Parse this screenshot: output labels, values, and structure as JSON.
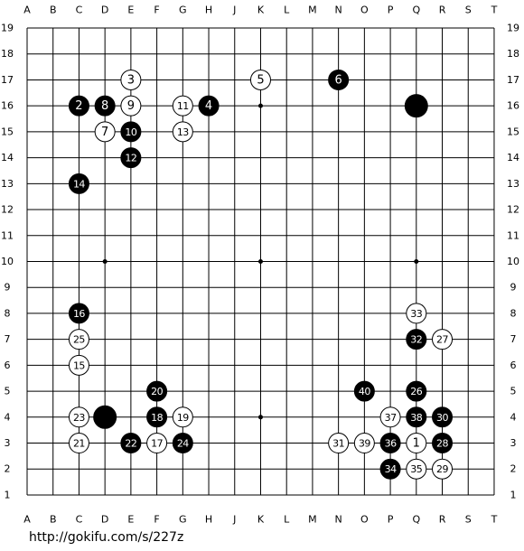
{
  "board": {
    "columns": [
      "A",
      "B",
      "C",
      "D",
      "E",
      "F",
      "G",
      "H",
      "J",
      "K",
      "L",
      "M",
      "N",
      "O",
      "P",
      "Q",
      "R",
      "S",
      "T"
    ],
    "rows": [
      19,
      18,
      17,
      16,
      15,
      14,
      13,
      12,
      11,
      10,
      9,
      8,
      7,
      6,
      5,
      4,
      3,
      2,
      1
    ],
    "stones": [
      {
        "col": "Q",
        "row": 3,
        "color": "white",
        "label": 1
      },
      {
        "col": "C",
        "row": 16,
        "color": "black",
        "label": 2
      },
      {
        "col": "E",
        "row": 17,
        "color": "white",
        "label": 3
      },
      {
        "col": "H",
        "row": 16,
        "color": "black",
        "label": 4
      },
      {
        "col": "K",
        "row": 17,
        "color": "white",
        "label": 5
      },
      {
        "col": "N",
        "row": 17,
        "color": "black",
        "label": 6
      },
      {
        "col": "D",
        "row": 15,
        "color": "white",
        "label": 7
      },
      {
        "col": "D",
        "row": 16,
        "color": "black",
        "label": 8
      },
      {
        "col": "E",
        "row": 16,
        "color": "white",
        "label": 9
      },
      {
        "col": "E",
        "row": 15,
        "color": "black",
        "label": 10
      },
      {
        "col": "G",
        "row": 16,
        "color": "white",
        "label": 11
      },
      {
        "col": "E",
        "row": 14,
        "color": "black",
        "label": 12
      },
      {
        "col": "G",
        "row": 15,
        "color": "white",
        "label": 13
      },
      {
        "col": "C",
        "row": 13,
        "color": "black",
        "label": 14
      },
      {
        "col": "C",
        "row": 6,
        "color": "white",
        "label": 15
      },
      {
        "col": "C",
        "row": 8,
        "color": "black",
        "label": 16
      },
      {
        "col": "F",
        "row": 3,
        "color": "white",
        "label": 17
      },
      {
        "col": "F",
        "row": 4,
        "color": "black",
        "label": 18
      },
      {
        "col": "G",
        "row": 4,
        "color": "white",
        "label": 19
      },
      {
        "col": "F",
        "row": 5,
        "color": "black",
        "label": 20
      },
      {
        "col": "C",
        "row": 3,
        "color": "white",
        "label": 21
      },
      {
        "col": "E",
        "row": 3,
        "color": "black",
        "label": 22
      },
      {
        "col": "C",
        "row": 4,
        "color": "white",
        "label": 23
      },
      {
        "col": "G",
        "row": 3,
        "color": "black",
        "label": 24
      },
      {
        "col": "C",
        "row": 7,
        "color": "white",
        "label": 25
      },
      {
        "col": "Q",
        "row": 5,
        "color": "black",
        "label": 26
      },
      {
        "col": "R",
        "row": 7,
        "color": "white",
        "label": 27
      },
      {
        "col": "R",
        "row": 3,
        "color": "black",
        "label": 28
      },
      {
        "col": "R",
        "row": 2,
        "color": "white",
        "label": 29
      },
      {
        "col": "R",
        "row": 4,
        "color": "black",
        "label": 30
      },
      {
        "col": "N",
        "row": 3,
        "color": "white",
        "label": 31
      },
      {
        "col": "Q",
        "row": 7,
        "color": "black",
        "label": 32
      },
      {
        "col": "Q",
        "row": 8,
        "color": "white",
        "label": 33
      },
      {
        "col": "P",
        "row": 2,
        "color": "black",
        "label": 34
      },
      {
        "col": "Q",
        "row": 2,
        "color": "white",
        "label": 35
      },
      {
        "col": "P",
        "row": 3,
        "color": "black",
        "label": 36
      },
      {
        "col": "P",
        "row": 4,
        "color": "white",
        "label": 37
      },
      {
        "col": "Q",
        "row": 4,
        "color": "black",
        "label": 38
      },
      {
        "col": "O",
        "row": 3,
        "color": "white",
        "label": 39
      },
      {
        "col": "O",
        "row": 5,
        "color": "black",
        "label": 40
      },
      {
        "col": "Q",
        "row": 16,
        "color": "black"
      },
      {
        "col": "D",
        "row": 4,
        "color": "black"
      }
    ]
  },
  "footer": {
    "url": "http://gokifu.com/s/227z"
  }
}
